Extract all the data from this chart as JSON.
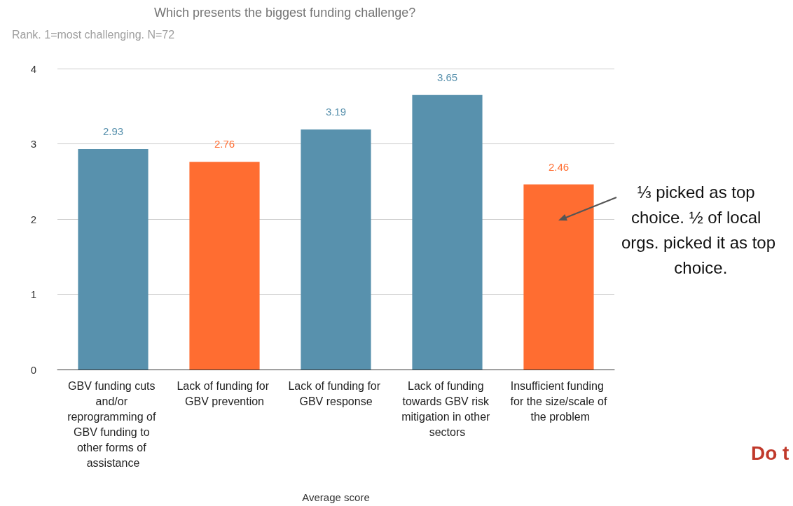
{
  "chart_data": {
    "type": "bar",
    "title": "Which presents the biggest funding challenge?",
    "subtitle": "Rank. 1=most challenging. N=72",
    "xlabel": "Average score",
    "categories": [
      "GBV funding cuts and/or reprogramming of GBV funding to other forms of assistance",
      "Lack of funding for GBV prevention",
      "Lack of funding for GBV response",
      "Lack of funding towards GBV risk mitigation in other sectors",
      "Insufficient funding for the size/scale of the problem"
    ],
    "values": [
      2.93,
      2.76,
      3.19,
      3.65,
      2.46
    ],
    "colors": [
      "#5891ad",
      "#ff6d31",
      "#5891ad",
      "#5891ad",
      "#ff6d31"
    ],
    "ylim": [
      0,
      4
    ],
    "yticks": [
      0,
      1,
      2,
      3,
      4
    ],
    "grid": "y",
    "data_labels": true,
    "annotations": [
      "⅓ picked as top choice. ½ of local orgs. picked it as top choice.",
      "Do t"
    ]
  }
}
